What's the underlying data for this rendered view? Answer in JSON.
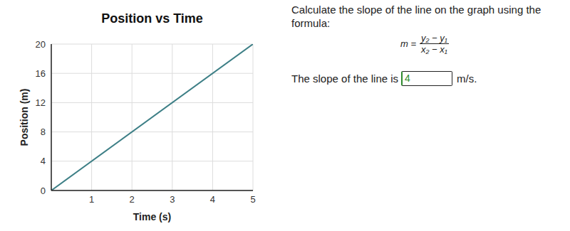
{
  "chart_data": {
    "type": "line",
    "title": "Position vs Time",
    "x_label": "Time (s)",
    "y_label": "Position (m)",
    "x": [
      0,
      5
    ],
    "values": [
      0,
      20
    ],
    "color": "#3d7f86",
    "xlim": [
      0,
      5
    ],
    "xticks": [
      1,
      2,
      3,
      4,
      5
    ],
    "ylim": [
      0,
      20
    ],
    "yticks": [
      0,
      4,
      8,
      12,
      16,
      20
    ],
    "grid": true
  },
  "question": {
    "prompt": "Calculate the slope of the line on the graph using the formula:",
    "formula": {
      "lhs": "m =",
      "numerator": "y₂ − y₁",
      "denominator": "x₂ − x₁"
    },
    "answer_prefix": "The slope of the line is",
    "answer": 4,
    "answer_unit": "m/s."
  }
}
